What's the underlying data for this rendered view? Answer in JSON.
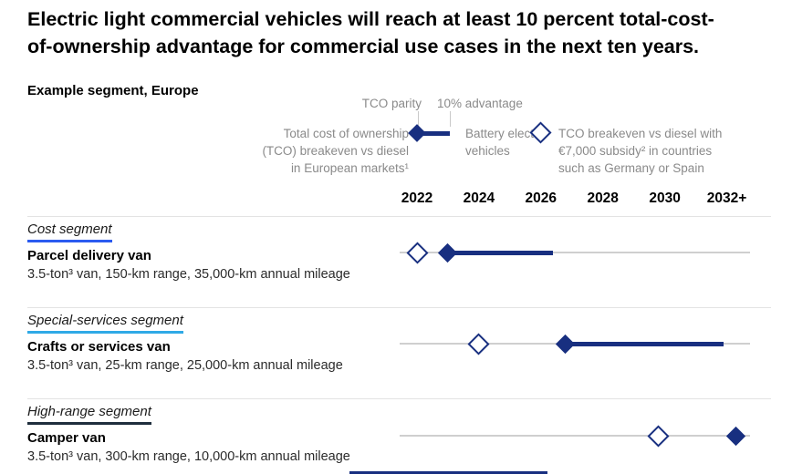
{
  "title_lines": [
    "Electric light commercial vehicles will reach at least 10 percent total-cost-",
    "of-ownership advantage for commercial use cases in the next ten years."
  ],
  "subtitle": "Example segment, Europe",
  "legend": {
    "parity_label": "TCO parity",
    "advantage_label": "10% advantage",
    "tco_note_lines": [
      "Total cost of ownership",
      "(TCO) breakeven vs diesel",
      "in European markets¹"
    ],
    "bev_label_lines": [
      "Battery electric",
      "vehicles"
    ],
    "subsidy_note_lines": [
      "TCO breakeven vs diesel with",
      "€7,000 subsidy² in countries",
      "such as Germany or Spain"
    ]
  },
  "colors": {
    "navy": "#182f80",
    "electric_blue": "#2b5bf0",
    "light_blue": "#2fa9e6",
    "dark_slate": "#1f2e3d",
    "gray_text": "#8a8a8a",
    "track_gray": "#cfcfcf"
  },
  "chart_data": {
    "type": "scatter",
    "title": "Example segment, Europe",
    "x_axis": {
      "ticks": [
        "2022",
        "2024",
        "2026",
        "2028",
        "2030",
        "2032+"
      ],
      "range": [
        2021.4,
        2032.8
      ]
    },
    "marker_legend": {
      "filled_diamond": "TCO parity (total cost of ownership breakeven vs diesel in European markets)",
      "line_end": "10% TCO advantage for battery electric vehicles",
      "open_diamond": "TCO breakeven vs diesel with €7,000 subsidy in countries such as Germany or Spain"
    },
    "rows": [
      {
        "segment": "Cost segment",
        "underline_color": "#2b5bf0",
        "vehicle": "Parcel delivery van",
        "specs": "3.5-ton³ van, 150-km range, 35,000-km annual mileage",
        "subsidy_breakeven_year": 2022,
        "tco_parity_year": 2023,
        "advantage_10pct_year": 2026.4
      },
      {
        "segment": "Special-services segment",
        "underline_color": "#2fa9e6",
        "vehicle": "Crafts or services van",
        "specs": "3.5-ton³ van, 25-km range, 25,000-km annual mileage",
        "subsidy_breakeven_year": 2024,
        "tco_parity_year": 2026.8,
        "advantage_10pct_year": 2031.9
      },
      {
        "segment": "High-range segment",
        "underline_color": "#1f2e3d",
        "vehicle": "Camper van",
        "specs": "3.5-ton³ van, 300-km range, 10,000-km annual mileage",
        "subsidy_breakeven_year": 2029.8,
        "tco_parity_year": 2032.3,
        "advantage_10pct_year": null
      }
    ]
  }
}
